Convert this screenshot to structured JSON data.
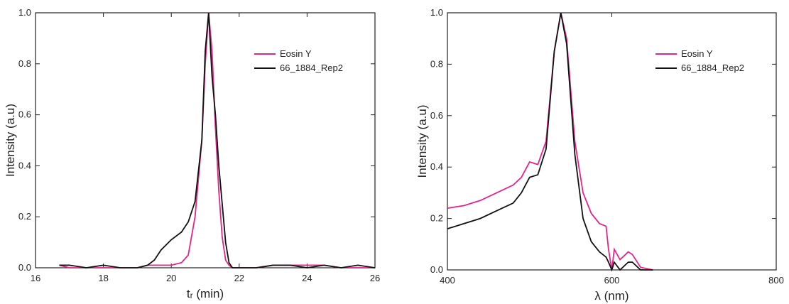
{
  "chart_data": [
    {
      "type": "line",
      "x_label": "tᵣ (min)",
      "y_label": "Intensity (a.u)",
      "x": [
        16.7,
        17,
        17.5,
        18,
        18.5,
        19,
        19.3,
        19.5,
        19.7,
        20,
        20.3,
        20.5,
        20.7,
        20.9,
        21,
        21.1,
        21.2,
        21.3,
        21.4,
        21.5,
        21.6,
        21.7,
        21.8,
        22,
        22.5,
        23,
        23.5,
        24,
        24.5,
        25,
        25.5,
        26
      ],
      "series": [
        {
          "name": "Eosin Y",
          "color": "#e0268c",
          "values": [
            0.01,
            0,
            0,
            0,
            0,
            0,
            0.01,
            0.01,
            0.01,
            0.01,
            0.02,
            0.05,
            0.2,
            0.5,
            0.8,
            1.0,
            0.85,
            0.55,
            0.3,
            0.12,
            0.03,
            0.01,
            0,
            0,
            0,
            0.01,
            0.01,
            0.01,
            0.01,
            0,
            0,
            0
          ]
        },
        {
          "name": "66_1884_Rep2",
          "color": "#111111",
          "values": [
            0.01,
            0.01,
            0,
            0.01,
            0,
            0,
            0.01,
            0.03,
            0.07,
            0.11,
            0.14,
            0.18,
            0.26,
            0.5,
            0.85,
            1.0,
            0.75,
            0.6,
            0.4,
            0.25,
            0.1,
            0.02,
            0,
            0,
            0,
            0.01,
            0.01,
            0,
            0.01,
            0,
            0.01,
            0
          ]
        }
      ],
      "xlim": [
        16,
        26
      ],
      "xticks": [
        16,
        18,
        20,
        22,
        24,
        26
      ],
      "ylim": [
        0,
        1
      ],
      "yticks": [
        {
          "value": 0,
          "label": "0.0"
        },
        0.2,
        0.4,
        0.6,
        0.8,
        {
          "value": 1,
          "label": "1.0"
        }
      ],
      "legend": "upper right"
    },
    {
      "type": "line",
      "x_label": "λ (nm)",
      "y_label": "Intensity (a.u)",
      "x": [
        400,
        420,
        440,
        460,
        480,
        490,
        500,
        510,
        520,
        530,
        538,
        545,
        555,
        565,
        575,
        585,
        593,
        596,
        600,
        603,
        610,
        620,
        625,
        635,
        650
      ],
      "series": [
        {
          "name": "Eosin Y",
          "color": "#e0268c",
          "values": [
            0.24,
            0.25,
            0.27,
            0.3,
            0.33,
            0.36,
            0.42,
            0.41,
            0.5,
            0.85,
            1.0,
            0.9,
            0.5,
            0.3,
            0.22,
            0.18,
            0.17,
            0.08,
            0,
            0.08,
            0.04,
            0.07,
            0.06,
            0.01,
            0
          ]
        },
        {
          "name": "66_1884_Rep2",
          "color": "#111111",
          "values": [
            0.16,
            0.18,
            0.2,
            0.23,
            0.26,
            0.3,
            0.36,
            0.37,
            0.47,
            0.85,
            1.0,
            0.88,
            0.45,
            0.2,
            0.11,
            0.07,
            0.05,
            0.03,
            0,
            0.03,
            0,
            0.03,
            0.03,
            0,
            0
          ]
        }
      ],
      "xlim": [
        400,
        800
      ],
      "xticks": [
        400,
        600,
        800
      ],
      "ylim": [
        0,
        1
      ],
      "yticks": [
        {
          "value": 0,
          "label": "0.0"
        },
        0.2,
        0.4,
        0.6,
        0.8,
        {
          "value": 1,
          "label": "1.0"
        }
      ],
      "legend": "upper right"
    }
  ]
}
